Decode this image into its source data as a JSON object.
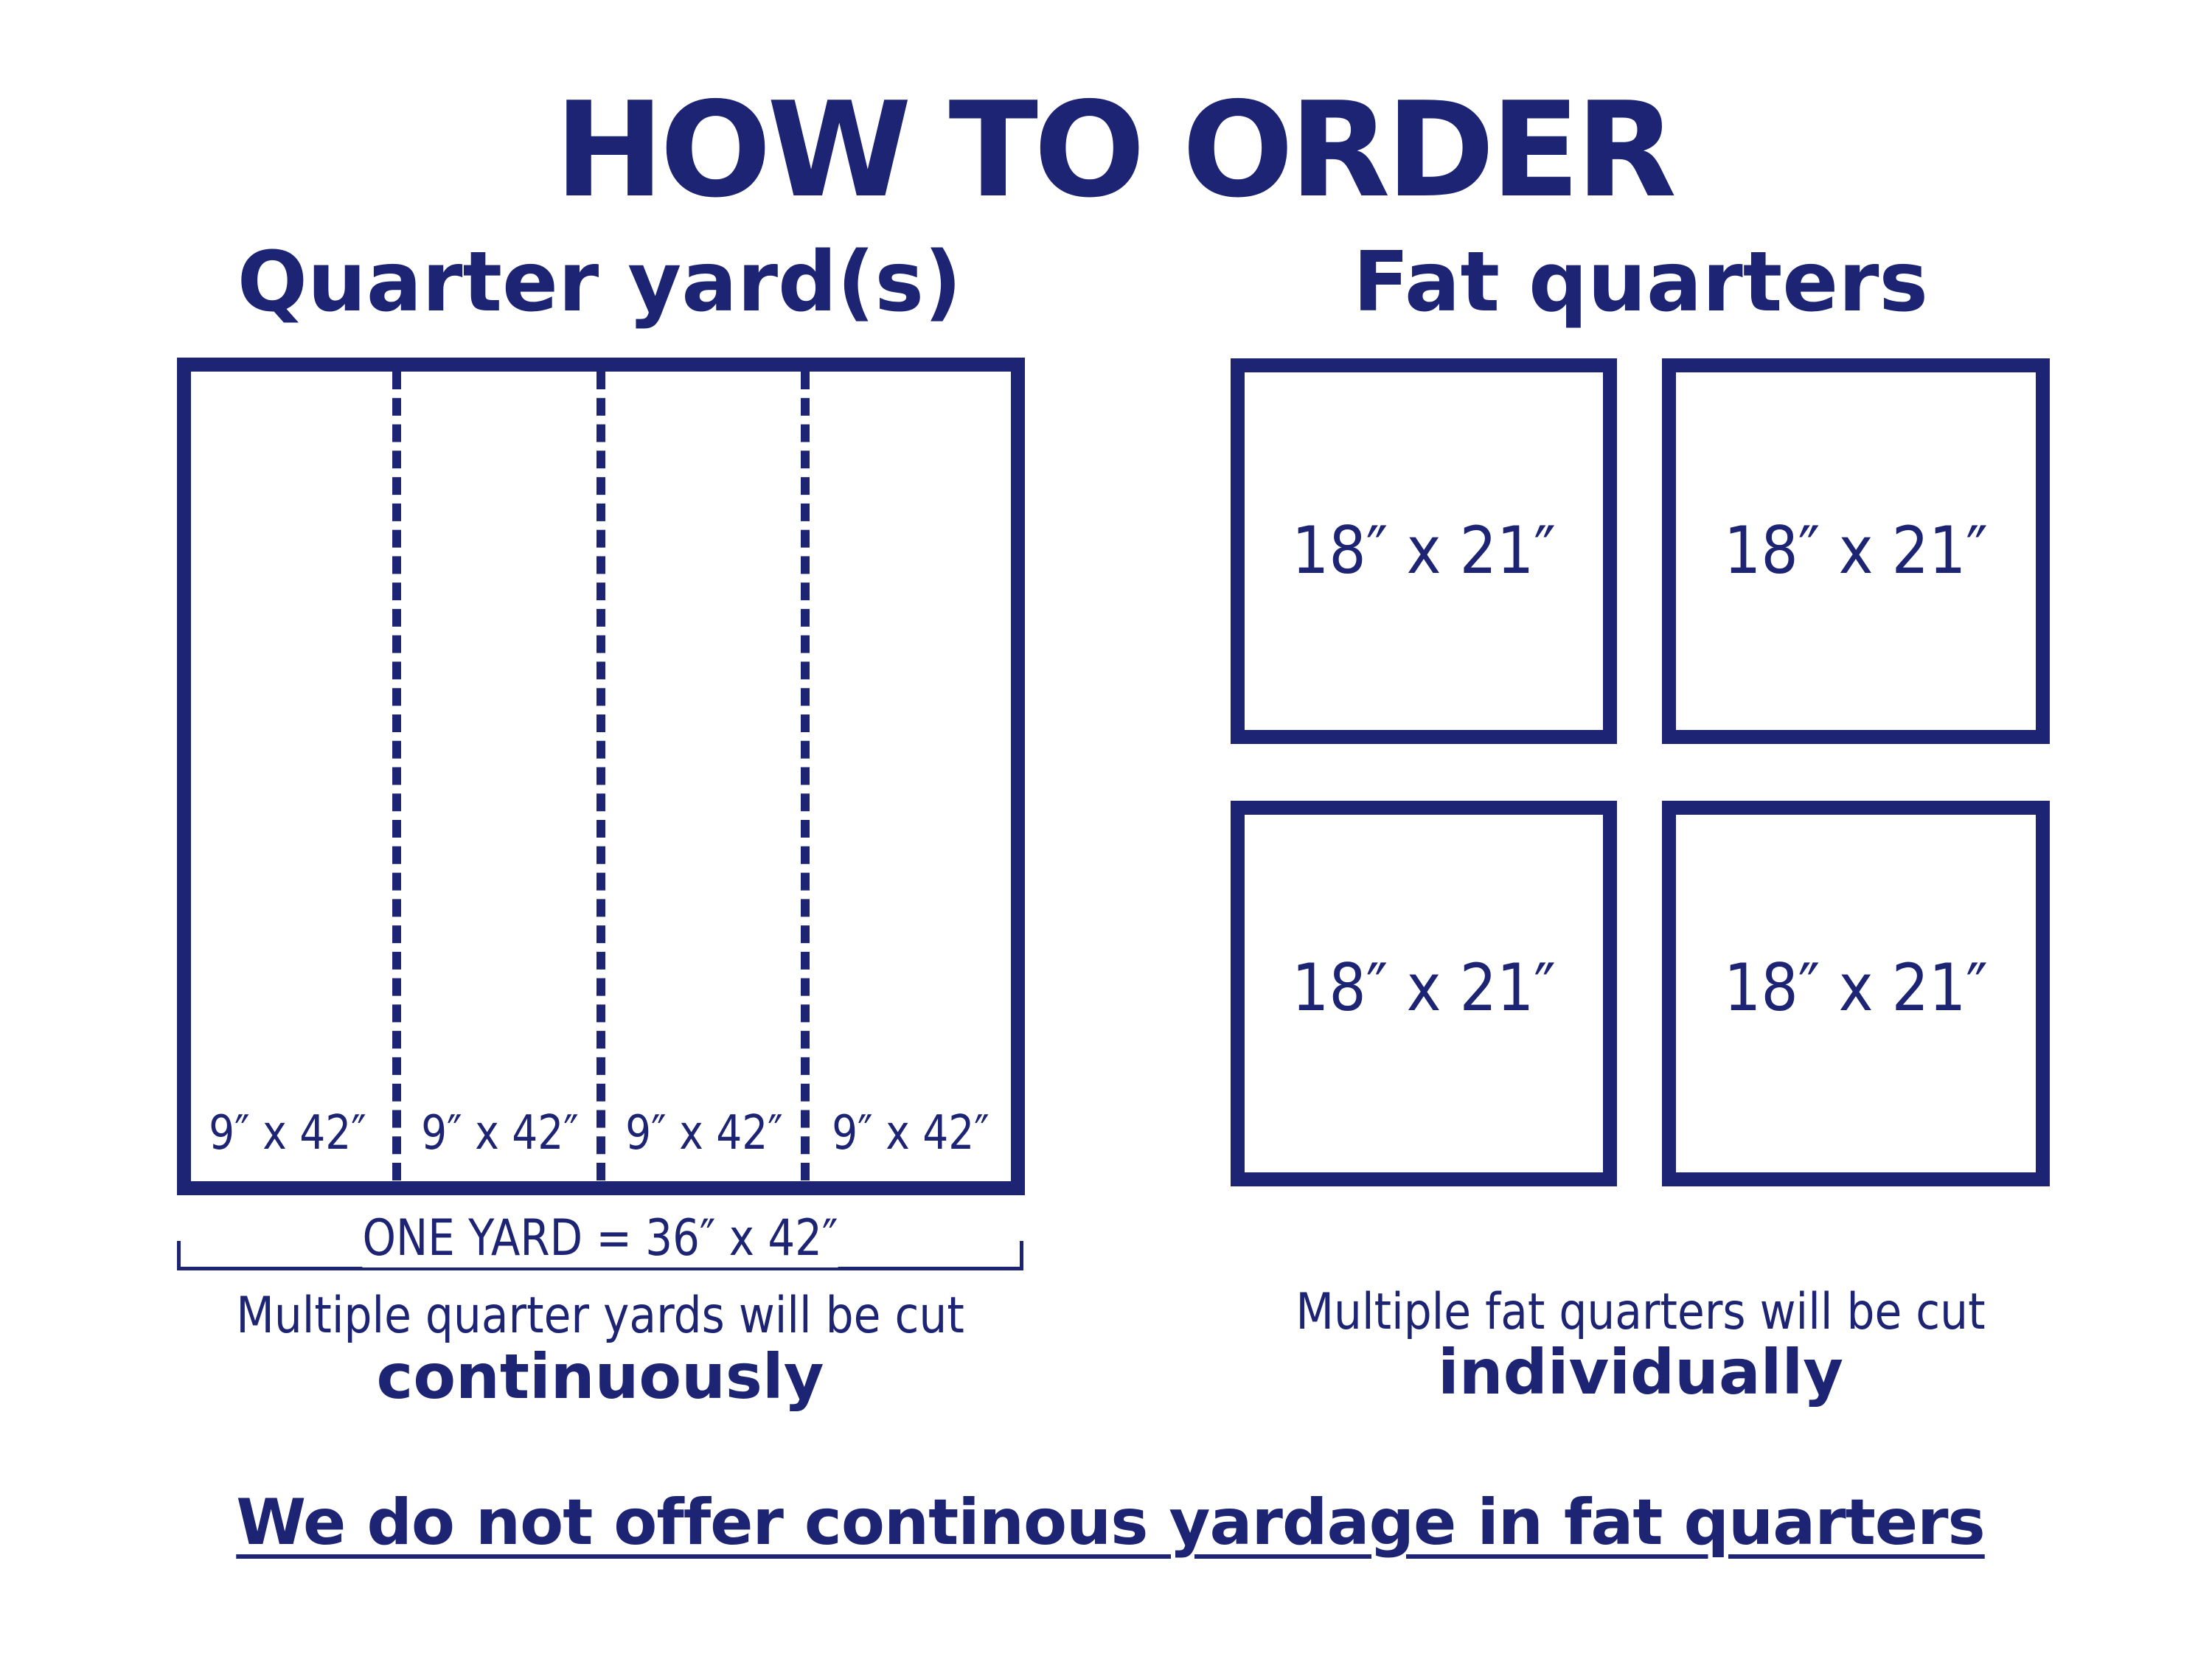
{
  "title": "HOW TO ORDER",
  "accent_color": "#1c2473",
  "quarter_yards": {
    "heading": "Quarter yard(s)",
    "strips": [
      "9″ x 42″",
      "9″ x 42″",
      "9″ x 42″",
      "9″ x 42″"
    ],
    "total_label": "ONE YARD = 36″ x 42″",
    "note": "Multiple quarter yards will be cut",
    "note_emphasis": "continuously"
  },
  "fat_quarters": {
    "heading": "Fat quarters",
    "pieces": [
      "18″ x 21″",
      "18″ x 21″",
      "18″ x 21″",
      "18″ x 21″"
    ],
    "note": "Multiple fat quarters will be cut",
    "note_emphasis": "individually"
  },
  "footer": "We do not offer continous yardage in fat quarters"
}
